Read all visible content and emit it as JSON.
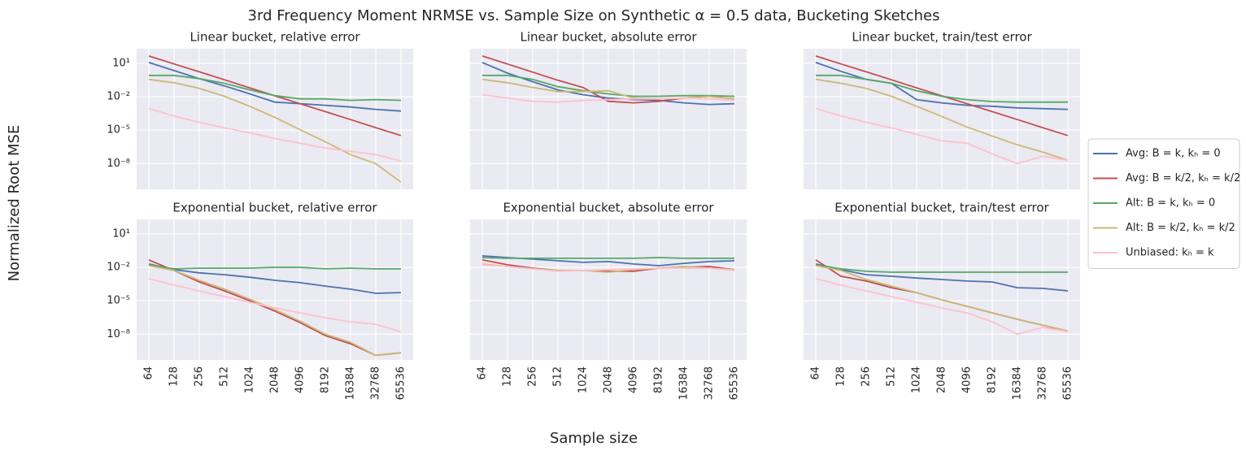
{
  "title": "3rd Frequency Moment NRMSE vs. Sample Size on Synthetic α = 0.5 data, Bucketing Sketches",
  "xlabel": "Sample size",
  "ylabel": "Normalized Root MSE",
  "legend": {
    "position": "right",
    "entries": [
      {
        "name": "Avg: B = k, kₕ = 0",
        "color": "#4c72b0"
      },
      {
        "name": "Avg: B = k/2, kₕ = k/2",
        "color": "#c44e52"
      },
      {
        "name": "Alt: B = k, kₕ = 0",
        "color": "#55a868"
      },
      {
        "name": "Alt: B = k/2, kₕ = k/2",
        "color": "#ccb974"
      },
      {
        "name": "Unbiased: kₕ = k",
        "color": "#ffc0cb"
      }
    ]
  },
  "chart_data": [
    {
      "type": "line",
      "title": "Linear bucket, relative error",
      "categories": [
        "64",
        "128",
        "256",
        "512",
        "1024",
        "2048",
        "4096",
        "8192",
        "16384",
        "32768",
        "65536"
      ],
      "yscale": "log",
      "grid": true,
      "ylim": [
        5e-11,
        200
      ],
      "yticks": [
        {
          "value": 10,
          "label": "10¹"
        },
        {
          "value": 0.01,
          "label": "10⁻²"
        },
        {
          "value": 1e-05,
          "label": "10⁻⁵"
        },
        {
          "value": 1e-08,
          "label": "10⁻⁸"
        }
      ],
      "series": [
        {
          "color": "#4c72b0",
          "values": [
            11.8,
            2.2,
            0.42,
            0.093,
            0.018,
            0.0033,
            0.0024,
            0.0017,
            0.0012,
            0.00074,
            0.00052
          ]
        },
        {
          "color": "#c44e52",
          "values": [
            45,
            8.7,
            1.7,
            0.33,
            0.063,
            0.012,
            0.0024,
            0.00046,
            8.9e-05,
            1.7e-05,
            3.3e-06
          ]
        },
        {
          "color": "#55a868",
          "values": [
            0.81,
            0.81,
            0.42,
            0.16,
            0.041,
            0.0126,
            0.0064,
            0.0064,
            0.0047,
            0.0055,
            0.0047
          ]
        },
        {
          "color": "#ccb974",
          "values": [
            0.36,
            0.18,
            0.056,
            0.011,
            0.0014,
            0.00014,
            1.1e-05,
            9.3e-07,
            6.5e-08,
            1e-08,
            2.2e-10
          ]
        },
        {
          "color": "#ffc0cb",
          "values": [
            0.00087,
            0.00019,
            5.1e-05,
            1.6e-05,
            5.9e-06,
            1.8e-06,
            6.7e-07,
            2.5e-07,
            1.3e-07,
            6.5e-08,
            1.7e-08
          ]
        }
      ]
    },
    {
      "type": "line",
      "title": "Linear bucket, absolute error",
      "categories": [
        "64",
        "128",
        "256",
        "512",
        "1024",
        "2048",
        "4096",
        "8192",
        "16384",
        "32768",
        "65536"
      ],
      "yscale": "log",
      "grid": true,
      "ylim": [
        5e-11,
        200
      ],
      "yticks": [
        {
          "value": 10,
          "label": "10¹"
        },
        {
          "value": 0.01,
          "label": "10⁻²"
        },
        {
          "value": 1e-05,
          "label": "10⁻⁵"
        },
        {
          "value": 1e-08,
          "label": "10⁻⁸"
        }
      ],
      "series": [
        {
          "color": "#4c72b0",
          "values": [
            11.8,
            1.3,
            0.22,
            0.041,
            0.015,
            0.0076,
            0.0055,
            0.0047,
            0.0028,
            0.002,
            0.0024
          ]
        },
        {
          "color": "#c44e52",
          "values": [
            45,
            8.5,
            1.6,
            0.3,
            0.067,
            0.0039,
            0.0028,
            0.0039,
            0.0076,
            0.011,
            0.0064
          ]
        },
        {
          "color": "#55a868",
          "values": [
            0.81,
            0.81,
            0.36,
            0.079,
            0.034,
            0.0178,
            0.011,
            0.011,
            0.0126,
            0.0126,
            0.011
          ]
        },
        {
          "color": "#ccb974",
          "values": [
            0.36,
            0.18,
            0.067,
            0.029,
            0.029,
            0.034,
            0.0076,
            0.0064,
            0.0076,
            0.011,
            0.0064
          ]
        },
        {
          "color": "#ffc0cb",
          "values": [
            0.015,
            0.0076,
            0.0039,
            0.0033,
            0.0047,
            0.0055,
            0.0064,
            0.0064,
            0.0076,
            0.0064,
            0.0047
          ]
        }
      ]
    },
    {
      "type": "line",
      "title": "Linear bucket, train/test error",
      "categories": [
        "64",
        "128",
        "256",
        "512",
        "1024",
        "2048",
        "4096",
        "8192",
        "16384",
        "32768",
        "65536"
      ],
      "yscale": "log",
      "grid": true,
      "ylim": [
        5e-11,
        200
      ],
      "yticks": [
        {
          "value": 10,
          "label": "10¹"
        },
        {
          "value": 0.01,
          "label": "10⁻²"
        },
        {
          "value": 1e-05,
          "label": "10⁻⁵"
        },
        {
          "value": 1e-08,
          "label": "10⁻⁸"
        }
      ],
      "series": [
        {
          "color": "#4c72b0",
          "values": [
            11.8,
            1.9,
            0.36,
            0.16,
            0.0055,
            0.0028,
            0.0017,
            0.0014,
            0.001,
            0.00086,
            0.00074
          ]
        },
        {
          "color": "#c44e52",
          "values": [
            45,
            8.7,
            1.7,
            0.33,
            0.063,
            0.012,
            0.0024,
            0.00046,
            8.9e-05,
            1.7e-05,
            3.3e-06
          ]
        },
        {
          "color": "#55a868",
          "values": [
            0.81,
            0.81,
            0.36,
            0.16,
            0.034,
            0.011,
            0.0055,
            0.0037,
            0.0033,
            0.0033,
            0.0033
          ]
        },
        {
          "color": "#ccb974",
          "values": [
            0.36,
            0.16,
            0.056,
            0.011,
            0.0014,
            0.00017,
            1.9e-05,
            3e-06,
            4.8e-07,
            1.1e-07,
            2e-08
          ]
        },
        {
          "color": "#ffc0cb",
          "values": [
            0.00087,
            0.00019,
            5.1e-05,
            1.6e-05,
            4.2e-06,
            1.1e-06,
            6.7e-07,
            7.6e-08,
            1e-08,
            4.7e-08,
            2e-08
          ]
        }
      ]
    },
    {
      "type": "line",
      "title": "Exponential bucket, relative error",
      "categories": [
        "64",
        "128",
        "256",
        "512",
        "1024",
        "2048",
        "4096",
        "8192",
        "16384",
        "32768",
        "65536"
      ],
      "yscale": "log",
      "grid": true,
      "ylim": [
        5e-11,
        200
      ],
      "yticks": [
        {
          "value": 10,
          "label": "10¹"
        },
        {
          "value": 0.01,
          "label": "10⁻²"
        },
        {
          "value": 1e-05,
          "label": "10⁻⁵"
        },
        {
          "value": 1e-08,
          "label": "10⁻⁸"
        }
      ],
      "series": [
        {
          "color": "#4c72b0",
          "values": [
            0.02,
            0.0062,
            0.0032,
            0.0022,
            0.0013,
            0.00069,
            0.00042,
            0.00021,
            0.00011,
            4.7e-05,
            5.5e-05
          ]
        },
        {
          "color": "#c44e52",
          "values": [
            0.046,
            0.0052,
            0.00049,
            7.8e-05,
            1e-05,
            1.2e-06,
            1.1e-07,
            7.5e-09,
            1.4e-09,
            1.3e-10,
            2.2e-10
          ]
        },
        {
          "color": "#55a868",
          "values": [
            0.017,
            0.0073,
            0.0085,
            0.0085,
            0.0085,
            0.01,
            0.01,
            0.0073,
            0.0085,
            0.0073,
            0.0073
          ]
        },
        {
          "color": "#ccb974",
          "values": [
            0.014,
            0.0052,
            0.00069,
            0.00011,
            1.4e-05,
            1.6e-06,
            1.5e-07,
            1e-08,
            1.9e-09,
            1.3e-10,
            2.2e-10
          ]
        },
        {
          "color": "#ffc0cb",
          "values": [
            0.00098,
            0.00025,
            7.8e-05,
            2.4e-05,
            7.4e-06,
            2.3e-06,
            8.3e-07,
            3e-07,
            1.3e-07,
            8e-08,
            1.7e-08
          ]
        }
      ]
    },
    {
      "type": "line",
      "title": "Exponential bucket, absolute error",
      "categories": [
        "64",
        "128",
        "256",
        "512",
        "1024",
        "2048",
        "4096",
        "8192",
        "16384",
        "32768",
        "65536"
      ],
      "yscale": "log",
      "grid": true,
      "ylim": [
        5e-11,
        200
      ],
      "yticks": [
        {
          "value": 10,
          "label": "10¹"
        },
        {
          "value": 0.01,
          "label": "10⁻²"
        },
        {
          "value": 1e-05,
          "label": "10⁻⁵"
        },
        {
          "value": 1e-08,
          "label": "10⁻⁸"
        }
      ],
      "series": [
        {
          "color": "#4c72b0",
          "values": [
            0.107,
            0.076,
            0.055,
            0.039,
            0.028,
            0.033,
            0.02,
            0.014,
            0.023,
            0.033,
            0.039
          ]
        },
        {
          "color": "#c44e52",
          "values": [
            0.046,
            0.017,
            0.0085,
            0.0052,
            0.0052,
            0.0044,
            0.0044,
            0.0085,
            0.01,
            0.012,
            0.0062
          ]
        },
        {
          "color": "#55a868",
          "values": [
            0.076,
            0.065,
            0.065,
            0.065,
            0.065,
            0.065,
            0.065,
            0.076,
            0.065,
            0.065,
            0.065
          ]
        },
        {
          "color": "#ccb974",
          "values": [
            0.02,
            0.012,
            0.0073,
            0.0052,
            0.0052,
            0.0037,
            0.0062,
            0.0085,
            0.012,
            0.0085,
            0.0062
          ]
        },
        {
          "color": "#ffc0cb",
          "values": [
            0.017,
            0.012,
            0.0073,
            0.0044,
            0.0052,
            0.0062,
            0.0073,
            0.0085,
            0.0085,
            0.0085,
            0.0052
          ]
        }
      ]
    },
    {
      "type": "line",
      "title": "Exponential bucket, train/test error",
      "categories": [
        "64",
        "128",
        "256",
        "512",
        "1024",
        "2048",
        "4096",
        "8192",
        "16384",
        "32768",
        "65536"
      ],
      "yscale": "log",
      "grid": true,
      "ylim": [
        5e-11,
        200
      ],
      "yticks": [
        {
          "value": 10,
          "label": "10¹"
        },
        {
          "value": 0.01,
          "label": "10⁻²"
        },
        {
          "value": 1e-05,
          "label": "10⁻⁵"
        },
        {
          "value": 1e-08,
          "label": "10⁻⁸"
        }
      ],
      "series": [
        {
          "color": "#4c72b0",
          "values": [
            0.02,
            0.0062,
            0.0022,
            0.0016,
            0.0011,
            0.00081,
            0.00059,
            0.00049,
            0.00015,
            0.00013,
            7.8e-05
          ]
        },
        {
          "color": "#c44e52",
          "values": [
            0.046,
            0.0016,
            0.00059,
            0.00015,
            5.5e-05,
            1.2e-05,
            3.2e-06,
            8.3e-07,
            2.2e-07,
            6.6e-08,
            1.7e-08
          ]
        },
        {
          "color": "#55a868",
          "values": [
            0.017,
            0.0073,
            0.0044,
            0.0037,
            0.0037,
            0.0037,
            0.0037,
            0.0037,
            0.0037,
            0.0037,
            0.0037
          ]
        },
        {
          "color": "#ccb974",
          "values": [
            0.014,
            0.0052,
            0.00081,
            0.00021,
            5.5e-05,
            1.2e-05,
            3.2e-06,
            8.3e-07,
            2.2e-07,
            6.6e-08,
            2e-08
          ]
        },
        {
          "color": "#ffc0cb",
          "values": [
            0.00098,
            0.00025,
            7.8e-05,
            2.4e-05,
            7.4e-06,
            2.3e-06,
            8.3e-07,
            1.3e-07,
            1e-08,
            4.1e-08,
            1.7e-08
          ]
        }
      ]
    }
  ]
}
